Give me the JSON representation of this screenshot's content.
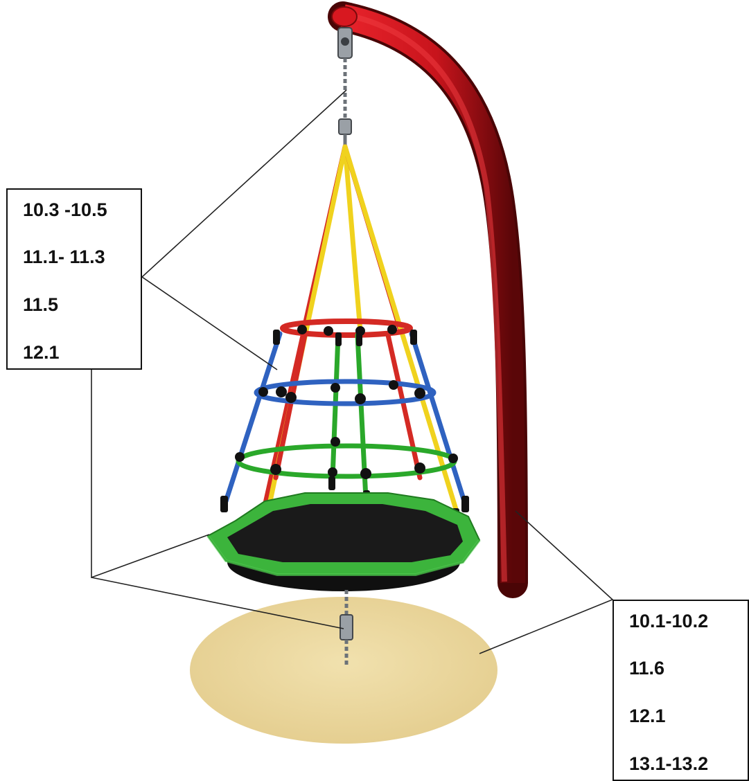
{
  "callouts": {
    "left": [
      "10.3 -10.5",
      "11.1- 11.3",
      "11.5",
      "12.1"
    ],
    "right": [
      "10.1-10.2",
      "11.6",
      "12.1",
      "13.1-13.2"
    ]
  },
  "colors": {
    "post": "#c8141c",
    "rope_yellow": "#f0d21e",
    "rope_red": "#d42a24",
    "rope_blue": "#2f62c0",
    "rope_green": "#2aa82a",
    "seat_rim": "#3cb43c",
    "seat_mat": "#1a1a1a",
    "ground": "#ecd9a0",
    "callout_border": "#111111"
  }
}
